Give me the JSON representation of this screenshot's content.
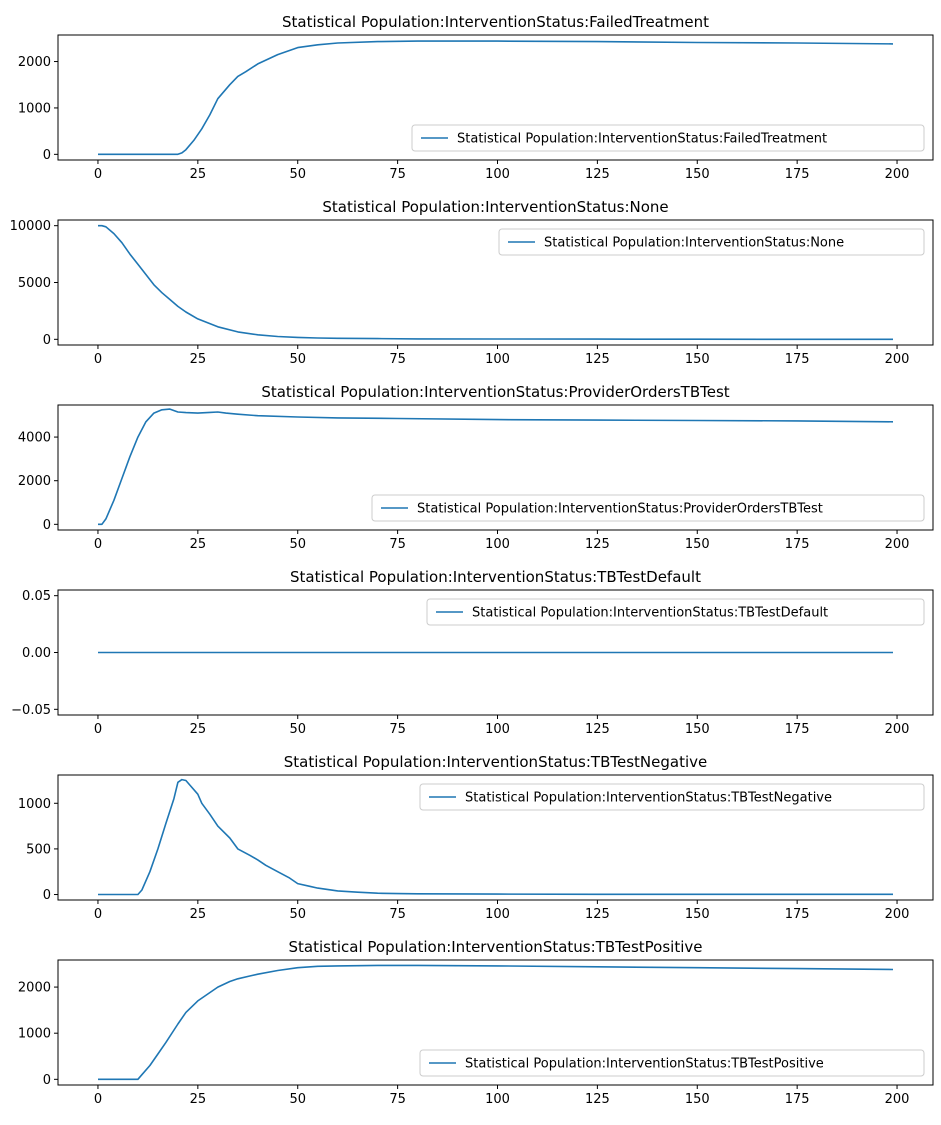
{
  "chart_data": [
    {
      "type": "line",
      "title": "Statistical Population:InterventionStatus:FailedTreatment",
      "xlabel": "",
      "ylabel": "",
      "xlim": [
        -10,
        209
      ],
      "ylim": [
        -122,
        2572
      ],
      "xticks": [
        0,
        25,
        50,
        75,
        100,
        125,
        150,
        175,
        200
      ],
      "yticks": [
        0,
        1000,
        2000
      ],
      "ytick_labels": [
        "0",
        "1000",
        "2000"
      ],
      "legend_loc": "lower right",
      "series": [
        {
          "name": "Statistical Population:InterventionStatus:FailedTreatment",
          "color": "#1f77b4",
          "x": [
            0,
            10,
            20,
            21,
            22,
            24,
            26,
            28,
            30,
            33,
            35,
            37,
            40,
            45,
            50,
            55,
            60,
            70,
            80,
            100,
            125,
            150,
            175,
            199
          ],
          "y": [
            0,
            0,
            0,
            30,
            100,
            300,
            550,
            850,
            1200,
            1500,
            1680,
            1780,
            1950,
            2150,
            2300,
            2360,
            2400,
            2430,
            2440,
            2440,
            2430,
            2410,
            2400,
            2380
          ]
        }
      ]
    },
    {
      "type": "line",
      "title": "Statistical Population:InterventionStatus:None",
      "xlabel": "",
      "ylabel": "",
      "xlim": [
        -10,
        209
      ],
      "ylim": [
        -500,
        10500
      ],
      "xticks": [
        0,
        25,
        50,
        75,
        100,
        125,
        150,
        175,
        200
      ],
      "yticks": [
        0,
        5000,
        10000
      ],
      "ytick_labels": [
        "0",
        "5000",
        "10000"
      ],
      "legend_loc": "upper right",
      "series": [
        {
          "name": "Statistical Population:InterventionStatus:None",
          "color": "#1f77b4",
          "x": [
            0,
            1,
            2,
            4,
            6,
            8,
            10,
            12,
            14,
            16,
            18,
            20,
            22,
            25,
            30,
            35,
            40,
            45,
            50,
            55,
            60,
            70,
            80,
            100,
            125,
            150,
            175,
            199
          ],
          "y": [
            10000,
            10000,
            9900,
            9300,
            8500,
            7500,
            6600,
            5700,
            4800,
            4100,
            3500,
            2900,
            2400,
            1800,
            1100,
            650,
            400,
            250,
            170,
            120,
            90,
            60,
            40,
            25,
            15,
            10,
            5,
            5
          ]
        }
      ]
    },
    {
      "type": "line",
      "title": "Statistical Population:InterventionStatus:ProviderOrdersTBTest",
      "xlabel": "",
      "ylabel": "",
      "xlim": [
        -10,
        209
      ],
      "ylim": [
        -260,
        5470
      ],
      "xticks": [
        0,
        25,
        50,
        75,
        100,
        125,
        150,
        175,
        200
      ],
      "yticks": [
        0,
        2000,
        4000
      ],
      "ytick_labels": [
        "0",
        "2000",
        "4000"
      ],
      "legend_loc": "lower right",
      "series": [
        {
          "name": "Statistical Population:InterventionStatus:ProviderOrdersTBTest",
          "color": "#1f77b4",
          "x": [
            0,
            1,
            2,
            4,
            6,
            8,
            10,
            12,
            14,
            16,
            18,
            20,
            22,
            25,
            28,
            30,
            32,
            35,
            40,
            50,
            60,
            75,
            100,
            125,
            150,
            175,
            199
          ],
          "y": [
            0,
            0,
            250,
            1100,
            2100,
            3100,
            4000,
            4700,
            5100,
            5250,
            5280,
            5150,
            5120,
            5100,
            5130,
            5150,
            5100,
            5050,
            4980,
            4920,
            4880,
            4850,
            4800,
            4780,
            4760,
            4740,
            4700
          ]
        }
      ]
    },
    {
      "type": "line",
      "title": "Statistical Population:InterventionStatus:TBTestDefault",
      "xlabel": "",
      "ylabel": "",
      "xlim": [
        -10,
        209
      ],
      "ylim": [
        -0.055,
        0.055
      ],
      "xticks": [
        0,
        25,
        50,
        75,
        100,
        125,
        150,
        175,
        200
      ],
      "yticks": [
        -0.05,
        0,
        0.05
      ],
      "ytick_labels": [
        "−0.05",
        "0.00",
        "0.05"
      ],
      "legend_loc": "upper right",
      "series": [
        {
          "name": "Statistical Population:InterventionStatus:TBTestDefault",
          "color": "#1f77b4",
          "x": [
            0,
            199
          ],
          "y": [
            0,
            0
          ]
        }
      ]
    },
    {
      "type": "line",
      "title": "Statistical Population:InterventionStatus:TBTestNegative",
      "xlabel": "",
      "ylabel": "",
      "xlim": [
        -10,
        209
      ],
      "ylim": [
        -60,
        1310
      ],
      "xticks": [
        0,
        25,
        50,
        75,
        100,
        125,
        150,
        175,
        200
      ],
      "yticks": [
        0,
        500,
        1000
      ],
      "ytick_labels": [
        "0",
        "500",
        "1000"
      ],
      "legend_loc": "upper right",
      "series": [
        {
          "name": "Statistical Population:InterventionStatus:TBTestNegative",
          "color": "#1f77b4",
          "x": [
            0,
            10,
            11,
            13,
            15,
            17,
            19,
            20,
            21,
            22,
            23,
            25,
            26,
            28,
            30,
            33,
            35,
            38,
            40,
            42,
            45,
            48,
            50,
            53,
            55,
            60,
            65,
            70,
            75,
            80,
            100,
            125,
            150,
            175,
            199
          ],
          "y": [
            0,
            0,
            50,
            250,
            500,
            780,
            1050,
            1230,
            1260,
            1250,
            1200,
            1100,
            1000,
            880,
            750,
            620,
            500,
            430,
            380,
            320,
            250,
            180,
            120,
            90,
            70,
            40,
            25,
            15,
            10,
            8,
            5,
            3,
            2,
            2,
            2
          ]
        }
      ]
    },
    {
      "type": "line",
      "title": "Statistical Population:InterventionStatus:TBTestPositive",
      "xlabel": "",
      "ylabel": "",
      "xlim": [
        -10,
        209
      ],
      "ylim": [
        -123,
        2587
      ],
      "xticks": [
        0,
        25,
        50,
        75,
        100,
        125,
        150,
        175,
        200
      ],
      "yticks": [
        0,
        1000,
        2000
      ],
      "ytick_labels": [
        "0",
        "1000",
        "2000"
      ],
      "legend_loc": "lower right",
      "series": [
        {
          "name": "Statistical Population:InterventionStatus:TBTestPositive",
          "color": "#1f77b4",
          "x": [
            0,
            10,
            11,
            13,
            15,
            17,
            20,
            22,
            25,
            28,
            30,
            33,
            35,
            38,
            40,
            45,
            50,
            55,
            60,
            70,
            80,
            100,
            125,
            150,
            175,
            199
          ],
          "y": [
            0,
            0,
            100,
            300,
            550,
            800,
            1200,
            1450,
            1700,
            1880,
            2000,
            2120,
            2180,
            2240,
            2280,
            2360,
            2420,
            2450,
            2460,
            2470,
            2470,
            2460,
            2440,
            2420,
            2400,
            2380
          ]
        }
      ]
    }
  ]
}
